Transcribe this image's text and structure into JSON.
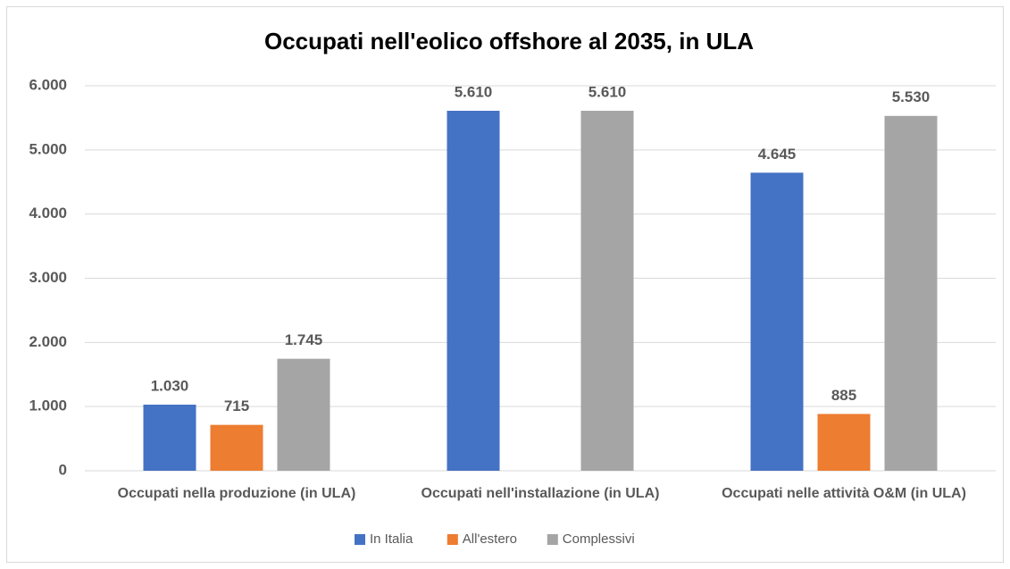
{
  "chart_data": {
    "type": "bar",
    "title": "Occupati nell'eolico offshore al 2035, in ULA",
    "categories": [
      "Occupati nella produzione (in ULA)",
      "Occupati nell'installazione (in ULA)",
      "Occupati nelle attività O&M (in ULA)"
    ],
    "series": [
      {
        "name": "In Italia",
        "color": "#4472c4",
        "values": [
          1030,
          5610,
          4645
        ],
        "value_labels": [
          "1.030",
          "5.610",
          "4.645"
        ]
      },
      {
        "name": "All'estero",
        "color": "#ed7d31",
        "values": [
          715,
          null,
          885
        ],
        "value_labels": [
          "715",
          null,
          "885"
        ]
      },
      {
        "name": "Complessivi",
        "color": "#a5a5a5",
        "values": [
          1745,
          5610,
          5530
        ],
        "value_labels": [
          "1.745",
          "5.610",
          "5.530"
        ]
      }
    ],
    "ylim": [
      0,
      6000
    ],
    "yticks": [
      0,
      {
        "value": 1000,
        "label": "1.000"
      },
      {
        "value": 2000,
        "label": "2.000"
      },
      {
        "value": 3000,
        "label": "3.000"
      },
      {
        "value": 4000,
        "label": "4.000"
      },
      {
        "value": 5000,
        "label": "5.000"
      },
      {
        "value": 6000,
        "label": "6.000"
      }
    ],
    "grid": true,
    "legend": "bottom"
  }
}
